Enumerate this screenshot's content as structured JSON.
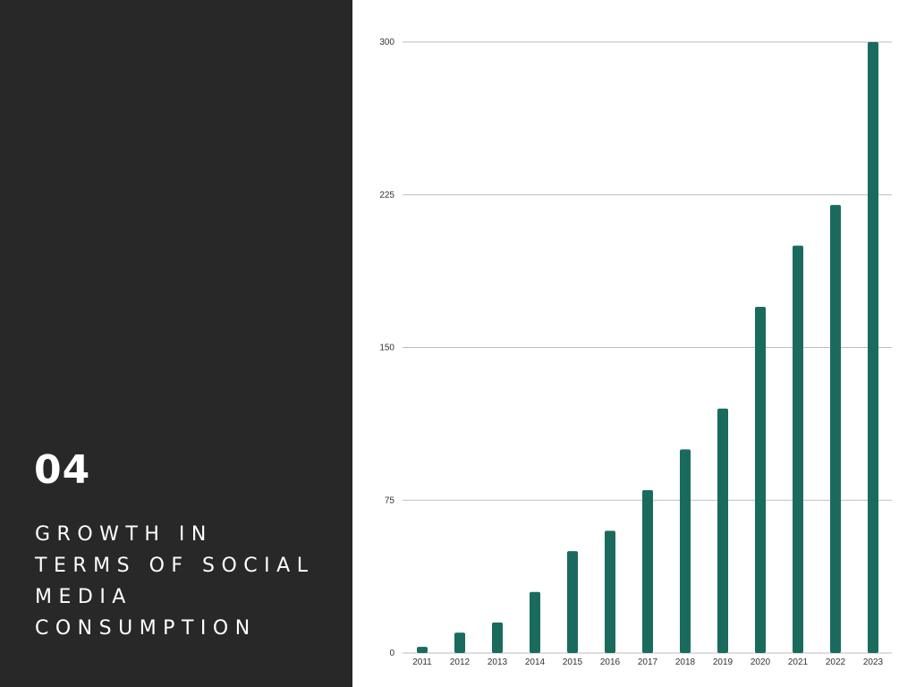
{
  "slide": {
    "number": "04",
    "title": "Growth in terms of social media consumption"
  },
  "colors": {
    "panel_background": "#282828",
    "bar": "#1a6b5e",
    "gridline": "#bdbdbd"
  },
  "chart_data": {
    "type": "bar",
    "title": "",
    "xlabel": "",
    "ylabel": "",
    "categories": [
      "2011",
      "2012",
      "2013",
      "2014",
      "2015",
      "2016",
      "2017",
      "2018",
      "2019",
      "2020",
      "2021",
      "2022",
      "2023"
    ],
    "values": [
      3,
      10,
      15,
      30,
      50,
      60,
      80,
      100,
      120,
      170,
      200,
      220,
      300
    ],
    "ylim": [
      0,
      300
    ],
    "yticks": [
      0,
      75,
      150,
      225,
      300
    ],
    "grid": true,
    "legend": "none"
  }
}
